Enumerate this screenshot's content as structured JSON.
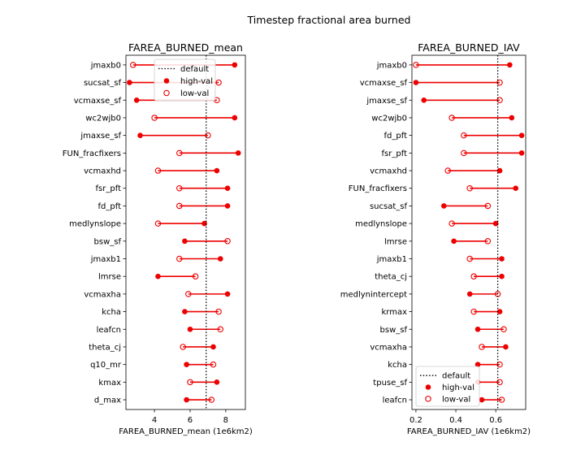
{
  "figure": {
    "suptitle": "Timestep fractional area burned"
  },
  "chart_data": [
    {
      "type": "dumbbell",
      "title": "FAREA_BURNED_mean",
      "xlabel": "FAREA_BURNED_mean (1e6km2)",
      "xlim": [
        2.4,
        9.1
      ],
      "xticks": [
        4,
        6,
        8
      ],
      "default_value": 6.9,
      "legend": {
        "placement": "top-center",
        "entries": [
          "default",
          "high-val",
          "low-val"
        ]
      },
      "parameters": [
        "jmaxb0",
        "sucsat_sf",
        "vcmaxse_sf",
        "wc2wjb0",
        "jmaxse_sf",
        "FUN_fracfixers",
        "vcmaxhd",
        "fsr_pft",
        "fd_pft",
        "medlynslope",
        "bsw_sf",
        "jmaxb1",
        "lmrse",
        "vcmaxha",
        "kcha",
        "leafcn",
        "theta_cj",
        "q10_mr",
        "kmax",
        "d_max"
      ],
      "high_val": [
        8.5,
        2.6,
        3.0,
        8.5,
        3.2,
        8.7,
        7.5,
        8.1,
        8.1,
        6.8,
        5.7,
        7.7,
        4.2,
        8.1,
        5.7,
        6.0,
        7.3,
        5.8,
        7.5,
        5.8
      ],
      "low_val": [
        2.8,
        7.6,
        7.5,
        4.0,
        7.0,
        5.4,
        4.2,
        5.4,
        5.4,
        4.2,
        8.1,
        5.4,
        6.3,
        5.9,
        7.6,
        7.7,
        5.6,
        7.3,
        6.0,
        7.2
      ]
    },
    {
      "type": "dumbbell",
      "title": "FAREA_BURNED_IAV",
      "xlabel": "FAREA_BURNED_IAV (1e6km2)",
      "xlim": [
        0.18,
        0.75
      ],
      "xticks": [
        0.2,
        0.4,
        0.6
      ],
      "tick_labels": [
        "0.2",
        "0.4",
        "0.6"
      ],
      "default_value": 0.61,
      "legend": {
        "placement": "bottom-left",
        "entries": [
          "default",
          "high-val",
          "low-val"
        ]
      },
      "parameters": [
        "jmaxb0",
        "vcmaxse_sf",
        "jmaxse_sf",
        "wc2wjb0",
        "fd_pft",
        "fsr_pft",
        "vcmaxhd",
        "FUN_fracfixers",
        "sucsat_sf",
        "medlynslope",
        "lmrse",
        "jmaxb1",
        "theta_cj",
        "medlynintercept",
        "krmax",
        "bsw_sf",
        "vcmaxha",
        "kcha",
        "tpuse_sf",
        "leafcn"
      ],
      "high_val": [
        0.67,
        0.2,
        0.24,
        0.68,
        0.73,
        0.73,
        0.62,
        0.7,
        0.34,
        0.6,
        0.39,
        0.63,
        0.63,
        0.47,
        0.62,
        0.51,
        0.65,
        0.51,
        0.51,
        0.53
      ],
      "low_val": [
        0.2,
        0.62,
        0.62,
        0.38,
        0.44,
        0.44,
        0.36,
        0.47,
        0.56,
        0.38,
        0.56,
        0.47,
        0.49,
        0.61,
        0.49,
        0.64,
        0.53,
        0.62,
        0.62,
        0.63
      ]
    }
  ]
}
